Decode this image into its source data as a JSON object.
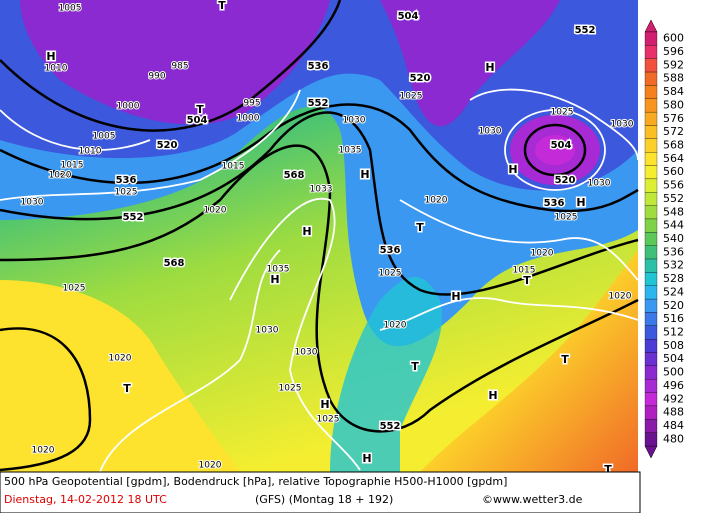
{
  "colorbar": {
    "levels": [
      600,
      596,
      592,
      588,
      584,
      580,
      576,
      572,
      568,
      564,
      560,
      556,
      552,
      548,
      544,
      540,
      536,
      532,
      528,
      524,
      520,
      516,
      512,
      508,
      504,
      500,
      496,
      492,
      488,
      484,
      480
    ],
    "colors": [
      "#d0206f",
      "#e8306a",
      "#f0503c",
      "#f06a28",
      "#f5801e",
      "#f89520",
      "#f9aa22",
      "#fbbe24",
      "#fcd02a",
      "#fde22e",
      "#f5ee30",
      "#dcef34",
      "#bfe83a",
      "#9edc40",
      "#7ed24a",
      "#5cc85a",
      "#3ec07a",
      "#2cc0a8",
      "#22c4d4",
      "#2cb6ee",
      "#3a98f0",
      "#3c78e8",
      "#3c58dc",
      "#4c3cd4",
      "#6a30d0",
      "#8a2ad0",
      "#a82ad4",
      "#c42ad8",
      "#b020c0",
      "#8a1aa8",
      "#6a1290"
    ]
  },
  "map_labels": {
    "heights": [
      "552",
      "504",
      "536",
      "520",
      "552",
      "504",
      "520",
      "536",
      "552",
      "568",
      "568",
      "536",
      "504",
      "520",
      "536",
      "552"
    ],
    "centers": [
      "H",
      "H",
      "H",
      "H",
      "H",
      "H",
      "H",
      "H",
      "H",
      "H",
      "H",
      "T",
      "T",
      "T",
      "T",
      "T",
      "T",
      "T",
      "T"
    ],
    "pressures": [
      "1005",
      "1010",
      "1000",
      "1005",
      "1010",
      "1015",
      "1020",
      "1025",
      "1030",
      "1020",
      "1025",
      "1020",
      "1020",
      "1020",
      "1030",
      "1035",
      "1030",
      "1025",
      "1025",
      "1033",
      "1035",
      "1030",
      "1025",
      "1030",
      "1025",
      "1030",
      "1030",
      "1025",
      "1020",
      "1015",
      "1020",
      "1020",
      "1025",
      "1020",
      "985",
      "990",
      "995",
      "1000",
      "1015"
    ]
  },
  "footer": {
    "line1": "500 hPa Geopotential [gpdm], Bodendruck [hPa], relative Topographie H500-H1000 [gpdm]",
    "date": "Dienstag, 14-02-2012  18 UTC",
    "model": "(GFS)  (Montag 18 + 192)",
    "credit": "©www.wetter3.de"
  }
}
